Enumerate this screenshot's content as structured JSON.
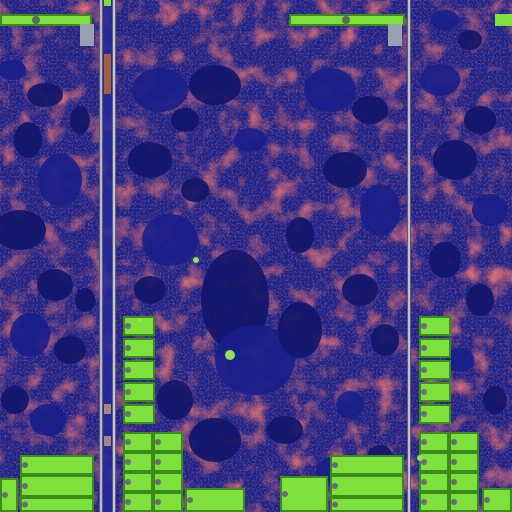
{
  "image": {
    "kind": "die-micrograph",
    "palette": {
      "substrate": "#1b2287",
      "substrate_dark": "#11166a",
      "metal_red": "#c82a2a",
      "metal_red_bright": "#e03a30",
      "block_green": "#7ee03a",
      "block_green_dark": "#3a8a1e",
      "rail": "#b8b8c8",
      "rail_dark": "#5a5a72"
    },
    "visible_text": []
  }
}
